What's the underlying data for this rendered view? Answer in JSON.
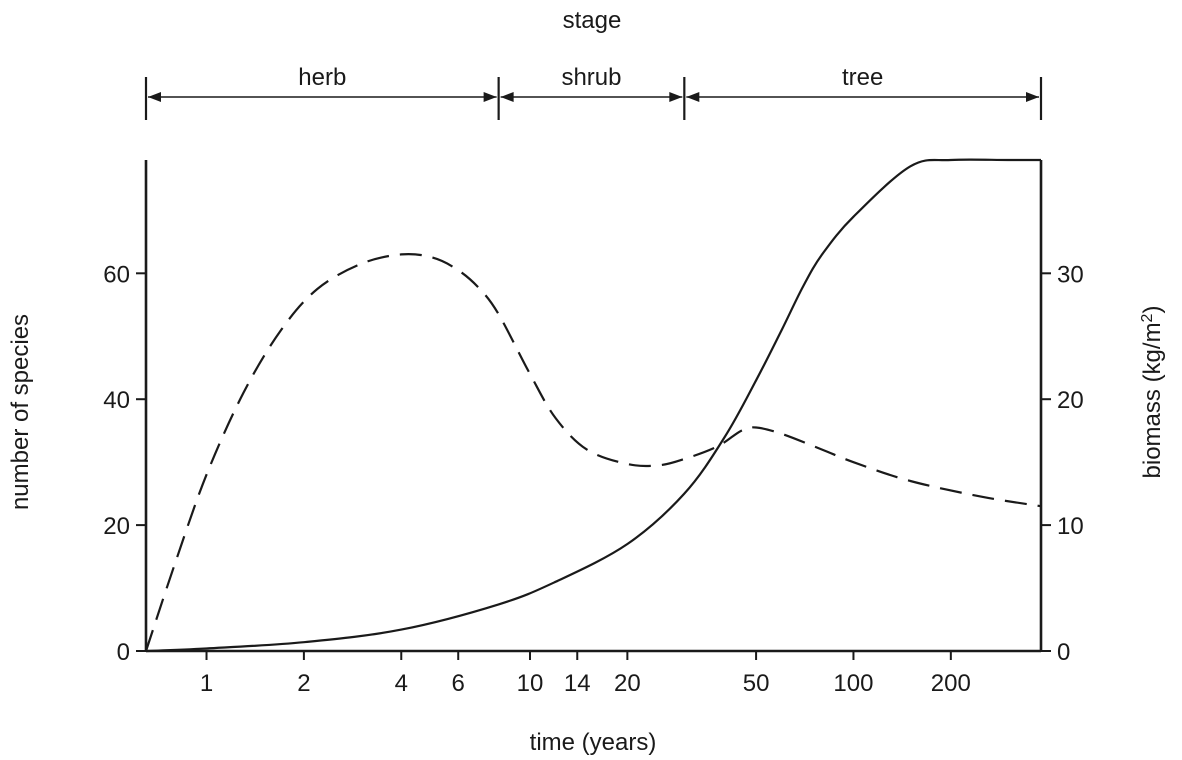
{
  "chart_data": {
    "type": "line",
    "stage_title": "stage",
    "stages": [
      {
        "name": "herb",
        "from_year": 0.65,
        "to_year": 8
      },
      {
        "name": "shrub",
        "from_year": 8,
        "to_year": 30
      },
      {
        "name": "tree",
        "from_year": 30,
        "to_year": 380
      }
    ],
    "xlabel": "time (years)",
    "ylabel_left": "number of species",
    "ylabel_right_main": "biomass (kg/m",
    "ylabel_right_sup": "2",
    "ylabel_right_tail": ")",
    "x_scale": "log",
    "xlim": [
      0.65,
      380
    ],
    "x_ticks": [
      {
        "value": 1,
        "label": "1"
      },
      {
        "value": 2,
        "label": "2"
      },
      {
        "value": 4,
        "label": "4"
      },
      {
        "value": 6,
        "label": "6"
      },
      {
        "value": 10,
        "label": "10"
      },
      {
        "value": 14,
        "label": "14"
      },
      {
        "value": 20,
        "label": "20"
      },
      {
        "value": 50,
        "label": "50"
      },
      {
        "value": 100,
        "label": "100"
      },
      {
        "value": 200,
        "label": "200"
      }
    ],
    "ylim_left": [
      0,
      78
    ],
    "y_ticks_left": [
      {
        "value": 0,
        "label": "0"
      },
      {
        "value": 20,
        "label": "20"
      },
      {
        "value": 40,
        "label": "40"
      },
      {
        "value": 60,
        "label": "60"
      }
    ],
    "ylim_right": [
      0,
      39
    ],
    "y_ticks_right": [
      {
        "value": 0,
        "label": "0"
      },
      {
        "value": 10,
        "label": "10"
      },
      {
        "value": 20,
        "label": "20"
      },
      {
        "value": 30,
        "label": "30"
      }
    ],
    "series": [
      {
        "style": "dashed",
        "axis": "left",
        "x": [
          0.65,
          0.8,
          1,
          1.3,
          1.7,
          2.2,
          3,
          4,
          5,
          6,
          7,
          8,
          10,
          12,
          15,
          20,
          25,
          30,
          38,
          45,
          50,
          60,
          80,
          100,
          150,
          250,
          380
        ],
        "y": [
          0,
          14,
          28,
          41,
          51,
          57.5,
          61.5,
          63,
          62.5,
          60.5,
          57.5,
          53.5,
          44,
          37,
          32,
          29.7,
          29.5,
          30.5,
          32.5,
          35,
          35.5,
          34.5,
          32,
          30,
          27,
          24.5,
          23
        ]
      },
      {
        "style": "solid",
        "axis": "right",
        "x": [
          0.65,
          1,
          2,
          4,
          8,
          12,
          20,
          30,
          40,
          50,
          60,
          70,
          80,
          100,
          150,
          200,
          300,
          380
        ],
        "y": [
          0,
          0.2,
          0.7,
          1.7,
          3.7,
          5.5,
          8.5,
          12.5,
          17,
          21.5,
          25.5,
          29,
          31.5,
          34.5,
          38.5,
          40.5,
          42.5,
          43.3
        ]
      }
    ]
  }
}
